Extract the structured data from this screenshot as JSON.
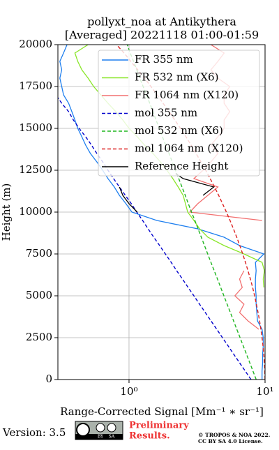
{
  "chart_data": {
    "type": "line",
    "title": "pollyxt_noa at Antikythera",
    "subtitle": "[Averaged] 20221118 01:00-01:59",
    "x_label": "Range-Corrected Signal [Mm⁻¹ ∗ sr⁻¹]",
    "y_label": "Height (m)",
    "x_log": true,
    "grid": true,
    "legend": "upper right",
    "xlim": [
      0.3,
      10
    ],
    "xticks": [
      {
        "value": 1,
        "label": "10⁰"
      },
      {
        "value": 10,
        "label": "10¹"
      }
    ],
    "ylim": [
      0,
      20000
    ],
    "yticks": [
      0,
      2500,
      5000,
      7500,
      10000,
      12500,
      15000,
      17500,
      20000
    ],
    "heights": [
      0,
      500,
      1000,
      1500,
      2000,
      2500,
      3000,
      3500,
      4000,
      4500,
      5000,
      5500,
      6000,
      6500,
      7000,
      7500,
      8000,
      8500,
      9000,
      9500,
      10000,
      10500,
      11000,
      11500,
      12000,
      12500,
      13000,
      13500,
      14000,
      14500,
      15000,
      15500,
      16000,
      16500,
      17000,
      17500,
      18000,
      18500,
      19000,
      19500,
      20000
    ],
    "series": [
      {
        "name": "FR 355 nm",
        "color": "#1e7fef",
        "dashed": false,
        "values": [
          9.5,
          9.5,
          9.6,
          9.6,
          9.7,
          9.7,
          9.5,
          8.8,
          8.7,
          8.6,
          8.6,
          8.5,
          8.5,
          8.6,
          8.5,
          9.8,
          6.5,
          5.0,
          3.2,
          1.6,
          1.05,
          0.95,
          0.85,
          0.78,
          0.7,
          0.64,
          0.58,
          0.52,
          0.48,
          0.45,
          0.42,
          0.4,
          0.38,
          0.36,
          0.33,
          0.32,
          0.31,
          0.32,
          0.31,
          0.33,
          0.35
        ]
      },
      {
        "name": "FR 532 nm (X6)",
        "color": "#8ae62a",
        "dashed": false,
        "values": [
          null,
          null,
          null,
          null,
          null,
          null,
          null,
          null,
          null,
          null,
          null,
          9.8,
          9.7,
          9.9,
          9.5,
          7.0,
          5.0,
          3.8,
          3.3,
          3.0,
          2.7,
          2.6,
          2.5,
          2.3,
          2.1,
          1.9,
          1.7,
          1.5,
          1.3,
          1.15,
          1.0,
          0.9,
          0.8,
          0.7,
          0.62,
          0.55,
          0.5,
          0.45,
          0.42,
          0.4,
          0.5
        ]
      },
      {
        "name": "FR 1064 nm (X120)",
        "color": "#f27070",
        "dashed": false,
        "values": [
          null,
          null,
          null,
          null,
          null,
          null,
          9.0,
          7.5,
          6.5,
          7.0,
          6.0,
          6.8,
          6.5,
          7.0,
          null,
          null,
          null,
          null,
          null,
          9.5,
          2.8,
          3.2,
          3.8,
          4.5,
          3.0,
          3.5,
          4.0,
          4.5,
          4.0,
          4.5,
          5.0,
          5.0,
          5.5,
          5.0,
          5.0,
          5.5,
          4.5,
          4.0,
          4.5,
          5.0,
          4.0
        ]
      },
      {
        "name": "mol 355 nm",
        "color": "#0000cc",
        "dashed": true,
        "values": [
          7.89,
          7.16,
          6.5,
          5.9,
          5.36,
          4.86,
          4.42,
          4.01,
          3.64,
          3.3,
          3.0,
          2.72,
          2.47,
          2.24,
          2.04,
          1.85,
          1.68,
          1.52,
          1.38,
          1.26,
          1.14,
          1.04,
          0.94,
          0.85,
          0.77,
          0.7,
          0.64,
          0.58,
          0.53,
          0.48,
          0.43,
          0.39,
          0.36,
          0.32,
          0.29,
          null,
          null,
          null,
          null,
          null,
          null
        ]
      },
      {
        "name": "mol 532 nm (X6)",
        "color": "#1fb51f",
        "dashed": true,
        "values": [
          8.61,
          8.15,
          7.72,
          7.31,
          6.92,
          6.55,
          6.2,
          5.87,
          5.56,
          5.26,
          4.98,
          4.72,
          4.47,
          4.23,
          4.0,
          3.79,
          3.59,
          3.4,
          3.22,
          3.05,
          2.88,
          2.73,
          2.59,
          2.45,
          2.32,
          2.19,
          2.08,
          1.97,
          1.86,
          1.76,
          1.67,
          1.58,
          1.5,
          1.42,
          1.34,
          1.27,
          1.2,
          1.14,
          1.08,
          1.02,
          0.97
        ]
      },
      {
        "name": "mol 1064 nm (X120)",
        "color": "#dd2222",
        "dashed": true,
        "values": [
          10.0,
          9.96,
          9.89,
          9.79,
          9.66,
          9.5,
          9.32,
          9.12,
          8.89,
          8.64,
          8.38,
          8.1,
          7.8,
          7.49,
          7.18,
          6.85,
          6.52,
          6.19,
          5.86,
          5.53,
          5.2,
          4.87,
          4.56,
          4.25,
          3.95,
          3.66,
          3.38,
          3.11,
          2.86,
          2.62,
          2.39,
          2.17,
          1.97,
          1.78,
          1.61,
          1.45,
          1.3,
          1.16,
          1.03,
          0.92,
          0.81
        ]
      },
      {
        "name": "Reference Height",
        "color": "#000000",
        "dashed": false,
        "heights": [
          10000,
          10500,
          11000,
          11500,
          null,
          11000,
          11500,
          12000,
          12300
        ],
        "values": [
          1.15,
          1.0,
          0.9,
          0.85,
          null,
          3.5,
          4.2,
          2.5,
          2.2
        ]
      }
    ],
    "footer": {
      "version": "Version: 3.5",
      "badge": [
        "BY",
        "SA"
      ],
      "notice": [
        "Preliminary",
        "Results."
      ],
      "copyright": [
        "© TROPOS & NOA 2022.",
        "CC BY SA 4.0 License."
      ]
    }
  }
}
